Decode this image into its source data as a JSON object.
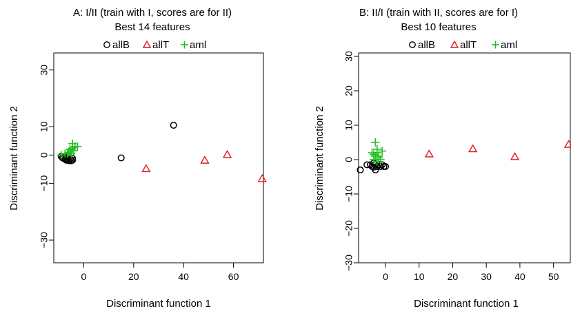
{
  "chart_data": [
    {
      "type": "scatter",
      "title": "A: I/II (train with I, scores are for II)",
      "subtitle": "Best 14 features",
      "xlabel": "Discriminant function 1",
      "ylabel": "Discriminant function 2",
      "xlim": [
        -12,
        72
      ],
      "ylim": [
        -38,
        36
      ],
      "xticks": [
        0,
        20,
        40,
        60
      ],
      "yticks": [
        -30,
        -10,
        0,
        10,
        30
      ],
      "xtick_labels": [
        "0",
        "20",
        "40",
        "60"
      ],
      "ytick_labels": [
        "−30",
        "−10",
        "0",
        "10",
        "30"
      ],
      "grid": false,
      "legend_position": "top-center",
      "series": [
        {
          "name": "allB",
          "marker": "circle",
          "color": "#000000",
          "points": [
            [
              -9,
              -0.5
            ],
            [
              -8.5,
              -1
            ],
            [
              -8,
              -0.8
            ],
            [
              -7.5,
              -1.5
            ],
            [
              -7,
              -1.8
            ],
            [
              -6.5,
              -1.2
            ],
            [
              -6,
              -2
            ],
            [
              -5.5,
              -1.5
            ],
            [
              -5,
              -2
            ],
            [
              -4.5,
              -1.2
            ],
            [
              -4.5,
              -1.8
            ],
            [
              -7,
              -0.2
            ],
            [
              -6,
              -0.5
            ],
            [
              -8,
              -1.2
            ],
            [
              15,
              -1
            ],
            [
              36,
              10.5
            ]
          ]
        },
        {
          "name": "allT",
          "marker": "triangle",
          "color": "#e0191c",
          "points": [
            [
              25,
              -5
            ],
            [
              48.5,
              -2
            ],
            [
              57.5,
              0
            ],
            [
              71.5,
              -8.5
            ]
          ]
        },
        {
          "name": "aml",
          "marker": "plus",
          "color": "#1fbf1f",
          "points": [
            [
              -9,
              0
            ],
            [
              -7.5,
              0.5
            ],
            [
              -6,
              1
            ],
            [
              -5.5,
              2
            ],
            [
              -4.5,
              4
            ],
            [
              -4.5,
              2.5
            ],
            [
              -5,
              0.5
            ],
            [
              -3.5,
              3
            ],
            [
              -2.5,
              3
            ],
            [
              -6.5,
              0.5
            ],
            [
              -4,
              1.5
            ]
          ]
        }
      ]
    },
    {
      "type": "scatter",
      "title": "B: II/I (train with II, scores are for I)",
      "subtitle": "Best 10 features",
      "xlabel": "Discriminant function 1",
      "ylabel": "Discriminant function 2",
      "xlim": [
        -8,
        55
      ],
      "ylim": [
        -30,
        31
      ],
      "xticks": [
        0,
        10,
        20,
        30,
        40,
        50
      ],
      "yticks": [
        -30,
        -20,
        -10,
        0,
        10,
        20,
        30
      ],
      "xtick_labels": [
        "0",
        "10",
        "20",
        "30",
        "40",
        "50"
      ],
      "ytick_labels": [
        "−30",
        "−20",
        "−10",
        "0",
        "10",
        "20",
        "30"
      ],
      "grid": false,
      "legend_position": "top-center",
      "series": [
        {
          "name": "allB",
          "marker": "circle",
          "color": "#000000",
          "points": [
            [
              -7.5,
              -3
            ],
            [
              -5.5,
              -1.5
            ],
            [
              -4.5,
              -1.5
            ],
            [
              -4,
              -2
            ],
            [
              -3.5,
              -1
            ],
            [
              -3,
              -3
            ],
            [
              -3,
              -1.5
            ],
            [
              -2.5,
              -2
            ],
            [
              -2,
              -1.5
            ],
            [
              -1.5,
              -2
            ],
            [
              -1,
              -1.5
            ],
            [
              -0.5,
              -2
            ],
            [
              0,
              -2
            ],
            [
              -3.5,
              -2.2
            ]
          ]
        },
        {
          "name": "allT",
          "marker": "triangle",
          "color": "#e0191c",
          "points": [
            [
              13,
              1.5
            ],
            [
              26,
              3
            ],
            [
              38.5,
              0.7
            ],
            [
              54.5,
              4.3
            ]
          ]
        },
        {
          "name": "aml",
          "marker": "plus",
          "color": "#1fbf1f",
          "points": [
            [
              -3.5,
              0
            ],
            [
              -3,
              1
            ],
            [
              -2.5,
              3
            ],
            [
              -3,
              5
            ],
            [
              -2.5,
              2
            ],
            [
              -2,
              0.5
            ],
            [
              -1,
              2.5
            ],
            [
              -4,
              2
            ],
            [
              -3.5,
              1.5
            ],
            [
              -2,
              1
            ],
            [
              -1.5,
              0
            ],
            [
              -2.5,
              -0.5
            ]
          ]
        }
      ]
    }
  ]
}
